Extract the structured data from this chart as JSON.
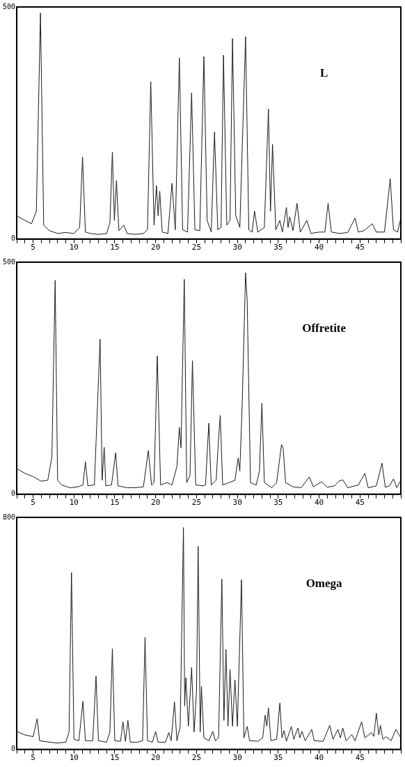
{
  "chart_data": [
    {
      "type": "line",
      "xlim": [
        3,
        50
      ],
      "ylim": [
        0,
        500
      ],
      "yticks": [
        0,
        500
      ],
      "grid": false,
      "legend": false,
      "marker": "none",
      "line_style": "solid",
      "xticks": [
        {
          "value": 3,
          "label": null
        },
        {
          "value": 4,
          "label": null
        },
        5,
        {
          "value": 6,
          "label": null
        },
        {
          "value": 7,
          "label": null
        },
        {
          "value": 8,
          "label": null
        },
        {
          "value": 9,
          "label": null
        },
        10,
        {
          "value": 11,
          "label": null
        },
        {
          "value": 12,
          "label": null
        },
        {
          "value": 13,
          "label": null
        },
        {
          "value": 14,
          "label": null
        },
        15,
        {
          "value": 16,
          "label": null
        },
        {
          "value": 17,
          "label": null
        },
        {
          "value": 18,
          "label": null
        },
        {
          "value": 19,
          "label": null
        },
        20,
        {
          "value": 21,
          "label": null
        },
        {
          "value": 22,
          "label": null
        },
        {
          "value": 23,
          "label": null
        },
        {
          "value": 24,
          "label": null
        },
        25,
        {
          "value": 26,
          "label": null
        },
        {
          "value": 27,
          "label": null
        },
        {
          "value": 28,
          "label": null
        },
        {
          "value": 29,
          "label": null
        },
        30,
        {
          "value": 31,
          "label": null
        },
        {
          "value": 32,
          "label": null
        },
        {
          "value": 33,
          "label": null
        },
        {
          "value": 34,
          "label": null
        },
        35,
        {
          "value": 36,
          "label": null
        },
        {
          "value": 37,
          "label": null
        },
        {
          "value": 38,
          "label": null
        },
        {
          "value": 39,
          "label": null
        },
        40,
        {
          "value": 41,
          "label": null
        },
        {
          "value": 42,
          "label": null
        },
        {
          "value": 43,
          "label": null
        },
        {
          "value": 44,
          "label": null
        },
        45,
        {
          "value": 46,
          "label": null
        },
        {
          "value": 47,
          "label": null
        },
        {
          "value": 48,
          "label": null
        },
        {
          "value": 49,
          "label": null
        },
        {
          "value": 50,
          "label": null
        }
      ],
      "series": [
        {
          "name": "L",
          "color": "#1a1a1a",
          "x": [
            3,
            4,
            4.8,
            5.4,
            5.9,
            6.3,
            7,
            8,
            9,
            10,
            10.7,
            11.05,
            11.4,
            12,
            13,
            14,
            14.4,
            14.7,
            14.95,
            15.2,
            15.5,
            16.1,
            16.5,
            17.5,
            18.5,
            19.0,
            19.4,
            19.8,
            20.1,
            20.3,
            20.5,
            20.8,
            21.5,
            22.0,
            22.4,
            22.9,
            23.3,
            23.9,
            24.4,
            24.8,
            25.4,
            25.9,
            26.3,
            26.8,
            27.2,
            27.6,
            28.0,
            28.3,
            28.7,
            29.1,
            29.4,
            29.8,
            30.3,
            31.0,
            31.4,
            31.8,
            32.1,
            32.5,
            33.3,
            33.8,
            34.05,
            34.3,
            34.7,
            35.2,
            35.5,
            36.0,
            36.2,
            36.4,
            36.8,
            37.3,
            37.7,
            38.5,
            39.0,
            40.0,
            40.7,
            41.1,
            41.5,
            42.5,
            43.5,
            44.4,
            44.8,
            45.5,
            46.5,
            47,
            48,
            48.7,
            49.1,
            49.6,
            50
          ],
          "values": [
            50,
            40,
            33,
            60,
            487,
            30,
            18,
            12,
            14,
            12,
            25,
            177,
            15,
            12,
            10,
            12,
            35,
            187,
            40,
            126,
            18,
            30,
            12,
            10,
            12,
            20,
            339,
            30,
            115,
            50,
            103,
            15,
            12,
            120,
            20,
            390,
            20,
            15,
            315,
            20,
            18,
            393,
            40,
            15,
            231,
            20,
            25,
            396,
            30,
            40,
            432,
            50,
            25,
            436,
            20,
            15,
            60,
            15,
            25,
            280,
            60,
            204,
            20,
            40,
            15,
            68,
            25,
            48,
            18,
            77,
            15,
            40,
            12,
            15,
            15,
            77,
            15,
            12,
            14,
            45,
            15,
            18,
            33,
            15,
            15,
            130,
            20,
            15,
            45
          ]
        }
      ]
    },
    {
      "type": "line",
      "xlim": [
        3,
        50
      ],
      "ylim": [
        0,
        500
      ],
      "yticks": [
        0,
        500
      ],
      "grid": false,
      "legend": false,
      "marker": "none",
      "line_style": "solid",
      "xticks": [
        {
          "value": 3,
          "label": null
        },
        {
          "value": 4,
          "label": null
        },
        5,
        {
          "value": 6,
          "label": null
        },
        {
          "value": 7,
          "label": null
        },
        {
          "value": 8,
          "label": null
        },
        {
          "value": 9,
          "label": null
        },
        10,
        {
          "value": 11,
          "label": null
        },
        {
          "value": 12,
          "label": null
        },
        {
          "value": 13,
          "label": null
        },
        {
          "value": 14,
          "label": null
        },
        15,
        {
          "value": 16,
          "label": null
        },
        {
          "value": 17,
          "label": null
        },
        {
          "value": 18,
          "label": null
        },
        {
          "value": 19,
          "label": null
        },
        20,
        {
          "value": 21,
          "label": null
        },
        {
          "value": 22,
          "label": null
        },
        {
          "value": 23,
          "label": null
        },
        {
          "value": 24,
          "label": null
        },
        25,
        {
          "value": 26,
          "label": null
        },
        {
          "value": 27,
          "label": null
        },
        {
          "value": 28,
          "label": null
        },
        {
          "value": 29,
          "label": null
        },
        30,
        {
          "value": 31,
          "label": null
        },
        {
          "value": 32,
          "label": null
        },
        {
          "value": 33,
          "label": null
        },
        {
          "value": 34,
          "label": null
        },
        35,
        {
          "value": 36,
          "label": null
        },
        {
          "value": 37,
          "label": null
        },
        {
          "value": 38,
          "label": null
        },
        {
          "value": 39,
          "label": null
        },
        40,
        {
          "value": 41,
          "label": null
        },
        {
          "value": 42,
          "label": null
        },
        {
          "value": 43,
          "label": null
        },
        {
          "value": 44,
          "label": null
        },
        45,
        {
          "value": 46,
          "label": null
        },
        {
          "value": 47,
          "label": null
        },
        {
          "value": 48,
          "label": null
        },
        {
          "value": 49,
          "label": null
        },
        {
          "value": 50,
          "label": null
        }
      ],
      "series": [
        {
          "name": "Offretite",
          "color": "#1a1a1a",
          "x": [
            3,
            4,
            5,
            6,
            6.8,
            7.3,
            7.7,
            8.0,
            8.5,
            9.5,
            10.5,
            11.1,
            11.4,
            11.7,
            12.5,
            13.2,
            13.45,
            13.7,
            13.9,
            14.6,
            15.1,
            15.4,
            16.5,
            17.5,
            18.5,
            19.1,
            19.5,
            19.8,
            20.2,
            20.6,
            21.4,
            22.0,
            22.6,
            22.9,
            23.1,
            23.5,
            23.8,
            24.2,
            24.5,
            24.9,
            25.8,
            26.1,
            26.5,
            26.8,
            27.4,
            27.7,
            27.9,
            28.2,
            29.0,
            29.7,
            30.1,
            30.3,
            30.6,
            31.0,
            31.2,
            31.6,
            32.3,
            32.7,
            33.0,
            33.3,
            34.2,
            34.8,
            35.4,
            35.6,
            35.9,
            36.8,
            37.8,
            38.8,
            39.3,
            40.3,
            41.0,
            41.9,
            42.4,
            42.9,
            43.5,
            44.8,
            45.6,
            46.0,
            47.0,
            47.7,
            48.1,
            48.6,
            49.1,
            49.5,
            50
          ],
          "values": [
            55,
            45,
            38,
            28,
            30,
            80,
            461,
            30,
            20,
            14,
            16,
            20,
            70,
            18,
            20,
            334,
            30,
            101,
            18,
            20,
            89,
            18,
            14,
            14,
            16,
            94,
            20,
            25,
            298,
            20,
            25,
            20,
            60,
            144,
            100,
            463,
            25,
            40,
            288,
            20,
            18,
            20,
            153,
            20,
            30,
            120,
            170,
            20,
            25,
            30,
            78,
            50,
            200,
            477,
            416,
            25,
            20,
            50,
            196,
            25,
            14,
            25,
            107,
            99,
            25,
            16,
            14,
            37,
            16,
            27,
            15,
            18,
            28,
            31,
            14,
            20,
            45,
            14,
            18,
            67,
            15,
            18,
            33,
            14,
            30
          ]
        }
      ]
    },
    {
      "type": "line",
      "xlim": [
        3,
        50
      ],
      "ylim": [
        0,
        800
      ],
      "yticks": [
        0,
        800
      ],
      "grid": false,
      "legend": false,
      "marker": "none",
      "line_style": "solid",
      "xticks": [
        {
          "value": 3,
          "label": null
        },
        {
          "value": 4,
          "label": null
        },
        5,
        {
          "value": 6,
          "label": null
        },
        {
          "value": 7,
          "label": null
        },
        {
          "value": 8,
          "label": null
        },
        {
          "value": 9,
          "label": null
        },
        10,
        {
          "value": 11,
          "label": null
        },
        {
          "value": 12,
          "label": null
        },
        {
          "value": 13,
          "label": null
        },
        {
          "value": 14,
          "label": null
        },
        15,
        {
          "value": 16,
          "label": null
        },
        {
          "value": 17,
          "label": null
        },
        {
          "value": 18,
          "label": null
        },
        {
          "value": 19,
          "label": null
        },
        20,
        {
          "value": 21,
          "label": null
        },
        {
          "value": 22,
          "label": null
        },
        {
          "value": 23,
          "label": null
        },
        {
          "value": 24,
          "label": null
        },
        25,
        {
          "value": 26,
          "label": null
        },
        {
          "value": 27,
          "label": null
        },
        {
          "value": 28,
          "label": null
        },
        {
          "value": 29,
          "label": null
        },
        30,
        {
          "value": 31,
          "label": null
        },
        {
          "value": 32,
          "label": null
        },
        {
          "value": 33,
          "label": null
        },
        {
          "value": 34,
          "label": null
        },
        35,
        {
          "value": 36,
          "label": null
        },
        {
          "value": 37,
          "label": null
        },
        {
          "value": 38,
          "label": null
        },
        {
          "value": 39,
          "label": null
        },
        40,
        {
          "value": 41,
          "label": null
        },
        {
          "value": 42,
          "label": null
        },
        {
          "value": 43,
          "label": null
        },
        {
          "value": 44,
          "label": null
        },
        45,
        {
          "value": 46,
          "label": null
        },
        {
          "value": 47,
          "label": null
        },
        {
          "value": 48,
          "label": null
        },
        {
          "value": 49,
          "label": null
        },
        {
          "value": 50,
          "label": null
        }
      ],
      "series": [
        {
          "name": "Omega",
          "color": "#1a1a1a",
          "x": [
            3,
            4,
            5.0,
            5.5,
            5.8,
            7,
            8,
            9.0,
            9.4,
            9.7,
            10.0,
            10.6,
            11.1,
            11.4,
            12.3,
            12.7,
            13.0,
            14.0,
            14.4,
            14.7,
            15.0,
            15.7,
            16.0,
            16.3,
            16.6,
            16.9,
            17.8,
            18.4,
            18.7,
            19.0,
            19.6,
            20.0,
            20.3,
            21.2,
            21.6,
            21.9,
            22.3,
            22.6,
            23.0,
            23.4,
            23.55,
            23.7,
            24.0,
            24.4,
            24.7,
            25.0,
            25.2,
            25.45,
            25.6,
            25.9,
            26.5,
            27.0,
            27.3,
            27.7,
            28.1,
            28.35,
            28.6,
            28.85,
            29.1,
            29.4,
            29.7,
            30.0,
            30.5,
            30.8,
            31.2,
            31.5,
            32.5,
            33.1,
            33.4,
            33.6,
            33.8,
            34.1,
            34.8,
            35.2,
            35.45,
            35.7,
            36.0,
            36.6,
            36.9,
            37.4,
            37.65,
            37.9,
            38.3,
            39.1,
            39.4,
            40.5,
            41.3,
            41.7,
            42.3,
            42.6,
            42.9,
            43.3,
            44.0,
            44.4,
            45.2,
            45.6,
            46.4,
            46.7,
            47.0,
            47.3,
            47.5,
            47.8,
            48.2,
            48.8,
            49.4,
            50
          ],
          "values": [
            62,
            50,
            44,
            106,
            30,
            25,
            22,
            25,
            60,
            610,
            35,
            30,
            166,
            30,
            30,
            252,
            30,
            25,
            60,
            347,
            30,
            28,
            95,
            28,
            100,
            25,
            25,
            30,
            386,
            30,
            25,
            62,
            25,
            25,
            58,
            30,
            164,
            30,
            80,
            765,
            150,
            247,
            80,
            282,
            60,
            200,
            700,
            60,
            217,
            40,
            30,
            62,
            30,
            40,
            587,
            100,
            345,
            80,
            275,
            80,
            240,
            80,
            585,
            40,
            79,
            30,
            28,
            40,
            118,
            80,
            143,
            30,
            35,
            160,
            40,
            65,
            28,
            79,
            35,
            74,
            40,
            62,
            30,
            69,
            30,
            28,
            83,
            35,
            69,
            40,
            74,
            30,
            51,
            30,
            95,
            40,
            58,
            45,
            125,
            50,
            83,
            35,
            44,
            30,
            69,
            40
          ]
        }
      ]
    }
  ]
}
